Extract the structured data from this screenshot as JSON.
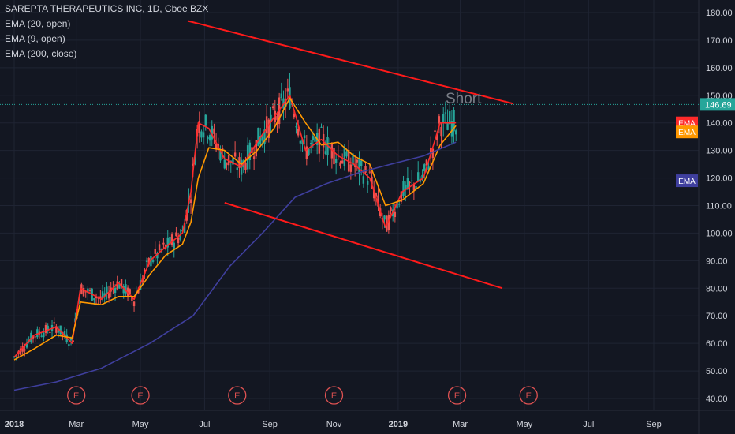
{
  "header": {
    "symbol_line": "SAREPTA THERAPEUTICS INC, 1D, Cboe BZX",
    "indicators": [
      "EMA (20, open)",
      "EMA (9, open)",
      "EMA (200, close)"
    ]
  },
  "annotation_text": "Short",
  "colors": {
    "background": "#131722",
    "grid": "#1f2433",
    "trendline": "#ff1a1a",
    "ema9": "#ff2a2a",
    "ema20": "#ff9800",
    "ema200": "#3f3f9e",
    "candle_up": "#26a69a",
    "candle_down": "#ef5350",
    "price_badge": "#26a69a",
    "earnings_marker": "#e05252"
  },
  "chart_data": {
    "type": "line",
    "ylim": [
      36,
      183
    ],
    "y_ticks": [
      "40.00",
      "50.00",
      "60.00",
      "70.00",
      "80.00",
      "90.00",
      "100.00",
      "110.00",
      "120.00",
      "130.00",
      "140.00",
      "150.00",
      "160.00",
      "170.00",
      "180.00"
    ],
    "x_ticks": [
      "2018",
      "Mar",
      "May",
      "Jul",
      "Sep",
      "Nov",
      "2019",
      "Mar",
      "May",
      "Jul",
      "Sep"
    ],
    "current_price": "146.69",
    "series": [
      {
        "name": "EMA (9, open)",
        "color_key": "ema9",
        "x": [
          "2018-01-01",
          "2018-01-20",
          "2018-02-10",
          "2018-02-25",
          "2018-03-05",
          "2018-03-25",
          "2018-04-10",
          "2018-04-25",
          "2018-05-10",
          "2018-05-25",
          "2018-06-10",
          "2018-06-18",
          "2018-06-25",
          "2018-07-05",
          "2018-07-20",
          "2018-08-05",
          "2018-08-20",
          "2018-09-05",
          "2018-09-20",
          "2018-10-05",
          "2018-10-20",
          "2018-11-05",
          "2018-11-20",
          "2018-12-05",
          "2018-12-20",
          "2019-01-05",
          "2019-01-25",
          "2019-02-10",
          "2019-02-25"
        ],
        "values": [
          55,
          63,
          66,
          60,
          80,
          76,
          82,
          76,
          90,
          95,
          100,
          115,
          140,
          138,
          127,
          124,
          133,
          142,
          150,
          130,
          134,
          128,
          125,
          120,
          102,
          115,
          120,
          140,
          140
        ]
      },
      {
        "name": "EMA (20, open)",
        "color_key": "ema20",
        "x": [
          "2018-01-01",
          "2018-01-20",
          "2018-02-10",
          "2018-02-25",
          "2018-03-05",
          "2018-03-25",
          "2018-04-10",
          "2018-04-25",
          "2018-05-10",
          "2018-05-25",
          "2018-06-10",
          "2018-06-18",
          "2018-06-25",
          "2018-07-05",
          "2018-07-20",
          "2018-08-05",
          "2018-08-20",
          "2018-09-05",
          "2018-09-20",
          "2018-10-05",
          "2018-10-20",
          "2018-11-05",
          "2018-11-20",
          "2018-12-05",
          "2018-12-20",
          "2019-01-05",
          "2019-01-25",
          "2019-02-10",
          "2019-02-25"
        ],
        "values": [
          54,
          58,
          63,
          62,
          75,
          74,
          77,
          77,
          85,
          92,
          96,
          104,
          120,
          131,
          130,
          125,
          130,
          138,
          149,
          140,
          132,
          133,
          128,
          125,
          110,
          112,
          118,
          132,
          139
        ]
      },
      {
        "name": "EMA (200, close)",
        "color_key": "ema200",
        "x": [
          "2018-01-01",
          "2018-02-10",
          "2018-03-25",
          "2018-05-10",
          "2018-06-20",
          "2018-07-25",
          "2018-08-25",
          "2018-09-25",
          "2018-10-25",
          "2018-11-25",
          "2018-12-25",
          "2019-01-25",
          "2019-02-25"
        ],
        "values": [
          43,
          46,
          51,
          60,
          70,
          88,
          100,
          113,
          118,
          122,
          125,
          128,
          133
        ]
      }
    ],
    "trendlines": [
      {
        "x": [
          "2018-06-15",
          "2019-04-20"
        ],
        "values": [
          177,
          147
        ]
      },
      {
        "x": [
          "2018-07-20",
          "2019-04-10"
        ],
        "values": [
          111,
          80
        ]
      }
    ],
    "earnings_markers": [
      "2018-03-01",
      "2018-05-01",
      "2018-08-01",
      "2018-11-01",
      "2019-02-26",
      "2019-05-05"
    ],
    "earnings_label": "E",
    "ema_badges": [
      "EMA",
      "EMA",
      "EMA"
    ]
  }
}
